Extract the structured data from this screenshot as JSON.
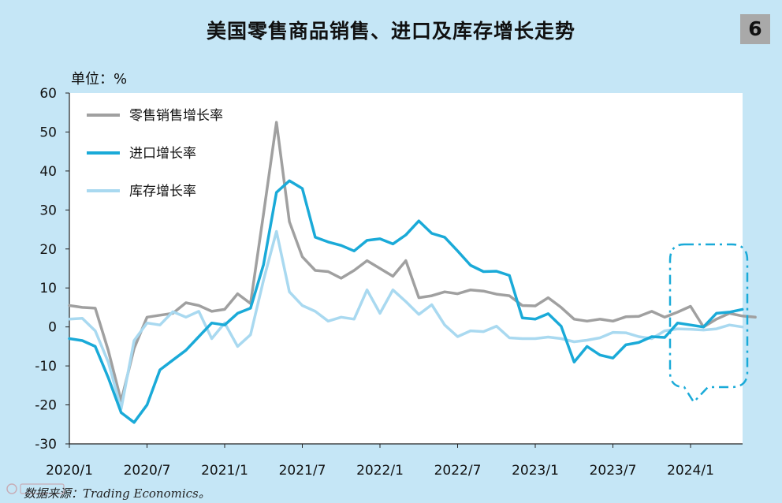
{
  "title": "美国零售商品销售、进口及库存增长走势",
  "figure_number": "6",
  "unit_label": "单位：%",
  "source": "数据来源：Trading Economics。",
  "colors": {
    "background": "#c5e6f6",
    "plot_background": "#ffffff",
    "retail": "#a0a0a0",
    "imports": "#1aaad8",
    "inventory": "#a9d9f0",
    "highlight": "#1aaad8"
  },
  "chart_data": {
    "type": "line",
    "title": "美国零售商品销售、进口及库存增长走势",
    "ylabel": "单位：%",
    "ylim": [
      -30,
      60
    ],
    "yticks": [
      -30,
      -20,
      -10,
      0,
      10,
      20,
      30,
      40,
      50,
      60
    ],
    "xticks": [
      "2020/1",
      "2020/7",
      "2021/1",
      "2021/7",
      "2022/1",
      "2022/7",
      "2023/1",
      "2023/7",
      "2024/1"
    ],
    "legend_position": "top-left",
    "grid": false,
    "annotation": "dash-dot rounded callout highlighting late 2023 – 2024",
    "series": [
      {
        "name": "零售销售增长率",
        "color": "#a0a0a0",
        "start": "2020/1",
        "values": [
          5.5,
          5.0,
          4.8,
          -6.0,
          -19.0,
          -5.5,
          2.5,
          3.0,
          3.5,
          6.2,
          5.5,
          4.0,
          4.5,
          8.5,
          6.0,
          29.0,
          52.5,
          27.0,
          18.0,
          14.5,
          14.2,
          12.5,
          14.5,
          17.0,
          15.0,
          13.0,
          17.0,
          7.5,
          8.0,
          9.0,
          8.5,
          9.5,
          9.2,
          8.4,
          8.0,
          5.5,
          5.4,
          7.5,
          5.0,
          2.0,
          1.5,
          2.0,
          1.5,
          2.6,
          2.7,
          4.0,
          2.5,
          3.8,
          5.3,
          0.0,
          2.0,
          3.5,
          2.8,
          2.5
        ]
      },
      {
        "name": "进口增长率",
        "color": "#1aaad8",
        "start": "2020/1",
        "values": [
          -3.0,
          -3.5,
          -5.0,
          -13.0,
          -22.0,
          -24.5,
          -20.0,
          -11.0,
          -8.5,
          -6.0,
          -2.5,
          1.0,
          0.5,
          3.5,
          4.8,
          16.0,
          34.5,
          37.5,
          35.5,
          23.0,
          21.8,
          20.9,
          19.5,
          22.2,
          22.6,
          21.3,
          23.6,
          27.2,
          24.0,
          23.0,
          19.5,
          15.8,
          14.2,
          14.3,
          13.2,
          2.3,
          2.0,
          3.4,
          0.2,
          -9.0,
          -5.0,
          -7.2,
          -8.0,
          -4.6,
          -4.0,
          -2.5,
          -2.7,
          1.0,
          0.5,
          0.0,
          3.5,
          3.8,
          4.5
        ]
      },
      {
        "name": "库存增长率",
        "color": "#a9d9f0",
        "start": "2020/1",
        "values": [
          2.0,
          2.2,
          -1.0,
          -9.0,
          -21.0,
          -3.5,
          1.0,
          0.5,
          3.9,
          2.5,
          4.0,
          -3.0,
          1.0,
          -5.0,
          -2.0,
          12.0,
          24.5,
          9.0,
          5.5,
          4.0,
          1.5,
          2.5,
          2.0,
          9.5,
          3.5,
          9.5,
          6.5,
          3.2,
          5.7,
          0.5,
          -2.5,
          -1.0,
          -1.2,
          0.2,
          -2.8,
          -3.0,
          -3.0,
          -2.6,
          -3.0,
          -3.8,
          -3.4,
          -2.8,
          -1.4,
          -1.5,
          -2.5,
          -3.0,
          -1.0,
          -0.5,
          -0.6,
          -0.8,
          -0.5,
          0.5,
          0.0
        ]
      }
    ]
  }
}
